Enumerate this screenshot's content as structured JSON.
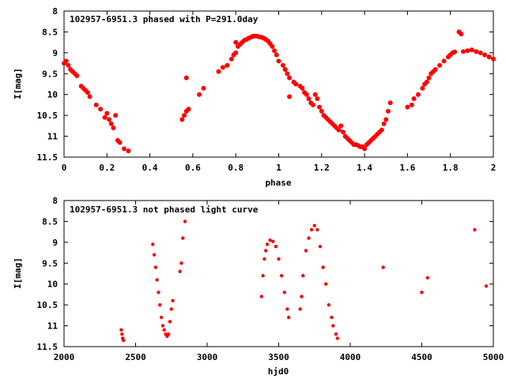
{
  "chart_data": [
    {
      "type": "scatter",
      "title": "102957-6951.3 phased with P=291.0day",
      "xlabel": "phase",
      "ylabel": "I[mag]",
      "xlim": [
        0,
        2
      ],
      "ylim": [
        8,
        11.5
      ],
      "y_inverted": true,
      "grid": false,
      "marker_color": "#ff0000",
      "xticks": [
        "0",
        "0.2",
        "0.4",
        "0.6",
        "0.8",
        "1",
        "1.2",
        "1.4",
        "1.6",
        "1.8",
        "2"
      ],
      "yticks": [
        "8",
        "8.5",
        "9",
        "9.5",
        "10",
        "10.5",
        "11",
        "11.5"
      ],
      "points": [
        [
          0.0,
          9.25
        ],
        [
          0.01,
          9.2
        ],
        [
          0.02,
          9.3
        ],
        [
          0.03,
          9.4
        ],
        [
          0.04,
          9.45
        ],
        [
          0.05,
          9.5
        ],
        [
          0.06,
          9.55
        ],
        [
          0.08,
          9.8
        ],
        [
          0.09,
          9.85
        ],
        [
          0.1,
          9.9
        ],
        [
          0.11,
          9.95
        ],
        [
          0.12,
          10.05
        ],
        [
          0.15,
          10.25
        ],
        [
          0.17,
          10.35
        ],
        [
          0.19,
          10.55
        ],
        [
          0.2,
          10.45
        ],
        [
          0.21,
          10.6
        ],
        [
          0.22,
          10.7
        ],
        [
          0.24,
          10.5
        ],
        [
          0.23,
          10.8
        ],
        [
          0.25,
          11.1
        ],
        [
          0.26,
          11.15
        ],
        [
          0.28,
          11.3
        ],
        [
          0.3,
          11.35
        ],
        [
          0.55,
          10.6
        ],
        [
          0.56,
          10.5
        ],
        [
          0.57,
          10.4
        ],
        [
          0.58,
          10.35
        ],
        [
          0.57,
          9.6
        ],
        [
          0.63,
          10.0
        ],
        [
          0.65,
          9.85
        ],
        [
          0.72,
          9.45
        ],
        [
          0.74,
          9.35
        ],
        [
          0.76,
          9.3
        ],
        [
          0.78,
          9.15
        ],
        [
          0.79,
          9.05
        ],
        [
          0.8,
          9.0
        ],
        [
          0.8,
          8.75
        ],
        [
          0.81,
          8.85
        ],
        [
          0.82,
          8.8
        ],
        [
          0.83,
          8.75
        ],
        [
          0.84,
          8.7
        ],
        [
          0.85,
          8.68
        ],
        [
          0.86,
          8.65
        ],
        [
          0.87,
          8.63
        ],
        [
          0.88,
          8.6
        ],
        [
          0.89,
          8.6
        ],
        [
          0.9,
          8.6
        ],
        [
          0.91,
          8.62
        ],
        [
          0.92,
          8.63
        ],
        [
          0.93,
          8.65
        ],
        [
          0.94,
          8.68
        ],
        [
          0.95,
          8.72
        ],
        [
          0.96,
          8.78
        ],
        [
          0.97,
          8.85
        ],
        [
          0.98,
          8.95
        ],
        [
          0.99,
          9.05
        ],
        [
          1.0,
          9.2
        ],
        [
          1.02,
          9.3
        ],
        [
          1.03,
          9.4
        ],
        [
          1.04,
          9.5
        ],
        [
          1.05,
          9.6
        ],
        [
          1.05,
          10.05
        ],
        [
          1.07,
          9.7
        ],
        [
          1.08,
          9.75
        ],
        [
          1.1,
          9.8
        ],
        [
          1.11,
          9.85
        ],
        [
          1.12,
          9.95
        ],
        [
          1.13,
          10.0
        ],
        [
          1.14,
          10.1
        ],
        [
          1.15,
          10.2
        ],
        [
          1.16,
          10.25
        ],
        [
          1.17,
          10.0
        ],
        [
          1.18,
          10.1
        ],
        [
          1.19,
          10.3
        ],
        [
          1.2,
          10.4
        ],
        [
          1.21,
          10.5
        ],
        [
          1.22,
          10.55
        ],
        [
          1.23,
          10.6
        ],
        [
          1.24,
          10.65
        ],
        [
          1.25,
          10.7
        ],
        [
          1.26,
          10.75
        ],
        [
          1.27,
          10.8
        ],
        [
          1.28,
          10.85
        ],
        [
          1.29,
          10.75
        ],
        [
          1.3,
          10.9
        ],
        [
          1.31,
          11.0
        ],
        [
          1.32,
          11.05
        ],
        [
          1.33,
          11.1
        ],
        [
          1.34,
          11.15
        ],
        [
          1.35,
          11.2
        ],
        [
          1.36,
          11.2
        ],
        [
          1.37,
          11.22
        ],
        [
          1.38,
          11.25
        ],
        [
          1.39,
          11.25
        ],
        [
          1.4,
          11.3
        ],
        [
          1.41,
          11.2
        ],
        [
          1.42,
          11.15
        ],
        [
          1.43,
          11.1
        ],
        [
          1.44,
          11.05
        ],
        [
          1.45,
          11.0
        ],
        [
          1.46,
          10.95
        ],
        [
          1.47,
          10.9
        ],
        [
          1.48,
          10.85
        ],
        [
          1.49,
          10.7
        ],
        [
          1.5,
          10.6
        ],
        [
          1.51,
          10.4
        ],
        [
          1.52,
          10.2
        ],
        [
          1.6,
          10.3
        ],
        [
          1.62,
          10.25
        ],
        [
          1.63,
          10.1
        ],
        [
          1.65,
          10.0
        ],
        [
          1.67,
          9.85
        ],
        [
          1.68,
          9.75
        ],
        [
          1.69,
          9.7
        ],
        [
          1.7,
          9.6
        ],
        [
          1.71,
          9.5
        ],
        [
          1.72,
          9.45
        ],
        [
          1.73,
          9.4
        ],
        [
          1.75,
          9.3
        ],
        [
          1.77,
          9.2
        ],
        [
          1.79,
          9.1
        ],
        [
          1.8,
          9.05
        ],
        [
          1.81,
          9.0
        ],
        [
          1.82,
          8.98
        ],
        [
          1.84,
          8.5
        ],
        [
          1.85,
          8.55
        ],
        [
          1.86,
          8.97
        ],
        [
          1.88,
          8.95
        ],
        [
          1.9,
          8.93
        ],
        [
          1.92,
          8.97
        ],
        [
          1.94,
          9.0
        ],
        [
          1.96,
          9.05
        ],
        [
          1.98,
          9.1
        ],
        [
          2.0,
          9.15
        ]
      ]
    },
    {
      "type": "scatter",
      "title": "102957-6951.3 not phased light curve",
      "xlabel": "hjd0",
      "ylabel": "I[mag]",
      "xlim": [
        2000,
        5000
      ],
      "ylim": [
        8,
        11.5
      ],
      "y_inverted": true,
      "grid": false,
      "marker_color": "#ff0000",
      "xticks": [
        "2000",
        "2500",
        "3000",
        "3500",
        "4000",
        "4500",
        "5000"
      ],
      "yticks": [
        "8",
        "8.5",
        "9",
        "9.5",
        "10",
        "10.5",
        "11",
        "11.5"
      ],
      "points": [
        [
          2400,
          11.1
        ],
        [
          2405,
          11.2
        ],
        [
          2410,
          11.3
        ],
        [
          2415,
          11.35
        ],
        [
          2620,
          9.05
        ],
        [
          2630,
          9.3
        ],
        [
          2640,
          9.6
        ],
        [
          2650,
          9.9
        ],
        [
          2660,
          10.2
        ],
        [
          2670,
          10.5
        ],
        [
          2680,
          10.8
        ],
        [
          2690,
          11.0
        ],
        [
          2700,
          11.1
        ],
        [
          2710,
          11.2
        ],
        [
          2720,
          11.25
        ],
        [
          2730,
          11.2
        ],
        [
          2740,
          10.9
        ],
        [
          2750,
          10.6
        ],
        [
          2760,
          10.4
        ],
        [
          2810,
          9.7
        ],
        [
          2820,
          9.5
        ],
        [
          2830,
          8.9
        ],
        [
          2845,
          8.5
        ],
        [
          3380,
          10.3
        ],
        [
          3390,
          9.8
        ],
        [
          3400,
          9.4
        ],
        [
          3410,
          9.2
        ],
        [
          3420,
          9.05
        ],
        [
          3440,
          8.95
        ],
        [
          3460,
          8.98
        ],
        [
          3480,
          9.1
        ],
        [
          3500,
          9.4
        ],
        [
          3520,
          9.8
        ],
        [
          3540,
          10.2
        ],
        [
          3560,
          10.6
        ],
        [
          3570,
          10.8
        ],
        [
          3650,
          10.6
        ],
        [
          3660,
          10.3
        ],
        [
          3670,
          9.8
        ],
        [
          3690,
          9.2
        ],
        [
          3710,
          8.9
        ],
        [
          3730,
          8.7
        ],
        [
          3750,
          8.6
        ],
        [
          3770,
          8.7
        ],
        [
          3790,
          9.1
        ],
        [
          3810,
          9.6
        ],
        [
          3830,
          10.0
        ],
        [
          3850,
          10.5
        ],
        [
          3870,
          10.8
        ],
        [
          3880,
          11.0
        ],
        [
          3900,
          11.2
        ],
        [
          3910,
          11.3
        ],
        [
          4230,
          9.6
        ],
        [
          4500,
          10.2
        ],
        [
          4540,
          9.85
        ],
        [
          4870,
          8.7
        ],
        [
          4950,
          10.05
        ]
      ]
    }
  ]
}
